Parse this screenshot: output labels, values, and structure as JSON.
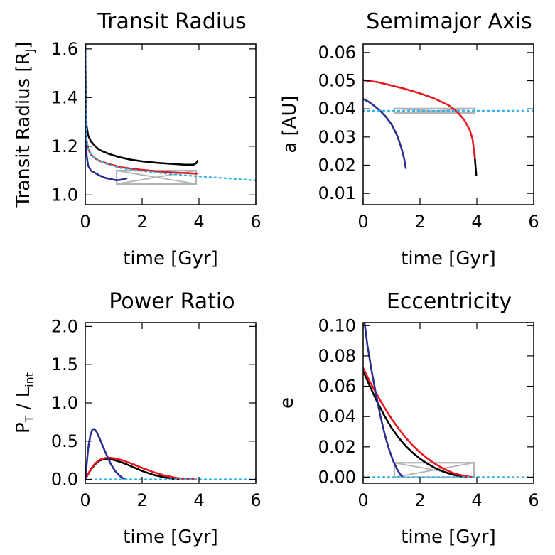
{
  "chart_data": [
    {
      "type": "line",
      "title": "Transit Radius",
      "xlabel": "time [Gyr]",
      "ylabel_main": "Transit Radius [R",
      "ylabel_sub": "J",
      "ylabel_end": "]",
      "xlim": [
        0,
        6
      ],
      "ylim": [
        0.96,
        1.62
      ],
      "xticks": [
        0,
        2,
        4,
        6
      ],
      "yticks": [
        1.0,
        1.2,
        1.4,
        1.6
      ],
      "ytick_labels": [
        "1.0",
        "1.2",
        "1.4",
        "1.6"
      ],
      "series": [
        {
          "name": "black",
          "color": "#000000",
          "style": "solid",
          "x": [
            0.0,
            0.02,
            0.05,
            0.1,
            0.2,
            0.35,
            0.5,
            0.8,
            1.2,
            1.6,
            2.0,
            2.5,
            3.0,
            3.5,
            3.8,
            3.9,
            3.95
          ],
          "y": [
            1.62,
            1.35,
            1.28,
            1.245,
            1.22,
            1.2,
            1.185,
            1.17,
            1.155,
            1.145,
            1.138,
            1.132,
            1.128,
            1.124,
            1.124,
            1.13,
            1.14
          ]
        },
        {
          "name": "red",
          "color": "#e8191e",
          "style": "solid",
          "x": [
            0.0,
            0.02,
            0.05,
            0.1,
            0.2,
            0.35,
            0.5,
            0.8,
            1.2,
            1.6,
            2.0,
            2.5,
            3.0,
            3.5,
            3.8,
            3.92
          ],
          "y": [
            1.62,
            1.28,
            1.22,
            1.19,
            1.165,
            1.15,
            1.14,
            1.128,
            1.115,
            1.108,
            1.103,
            1.097,
            1.093,
            1.09,
            1.088,
            1.088
          ]
        },
        {
          "name": "blue",
          "color": "#2a2f8f",
          "style": "solid",
          "x": [
            0.0,
            0.02,
            0.05,
            0.1,
            0.2,
            0.35,
            0.5,
            0.7,
            0.9,
            1.1,
            1.3,
            1.45
          ],
          "y": [
            1.62,
            1.25,
            1.16,
            1.12,
            1.1,
            1.09,
            1.08,
            1.07,
            1.065,
            1.06,
            1.063,
            1.068
          ]
        },
        {
          "name": "cyan",
          "color": "#35b5e5",
          "style": "dotted",
          "x": [
            0.0,
            0.02,
            0.05,
            0.1,
            0.2,
            0.35,
            0.5,
            0.8,
            1.2,
            1.6,
            2.0,
            2.5,
            3.0,
            3.5,
            4.0,
            4.5,
            5.0,
            5.5,
            6.0
          ],
          "y": [
            1.62,
            1.28,
            1.22,
            1.19,
            1.165,
            1.15,
            1.14,
            1.125,
            1.112,
            1.104,
            1.098,
            1.092,
            1.086,
            1.081,
            1.076,
            1.072,
            1.068,
            1.064,
            1.06
          ]
        }
      ],
      "constraint_box": {
        "x": [
          1.1,
          3.9
        ],
        "y": [
          1.045,
          1.1
        ],
        "color": "#b3b3b3"
      }
    },
    {
      "type": "line",
      "title": "Semimajor Axis",
      "xlabel": "time [Gyr]",
      "ylabel": "a [AU]",
      "xlim": [
        0,
        6
      ],
      "ylim": [
        0.006,
        0.063
      ],
      "xticks": [
        0,
        2,
        4,
        6
      ],
      "yticks": [
        0.01,
        0.02,
        0.03,
        0.04,
        0.05,
        0.06
      ],
      "ytick_labels": [
        "0.01",
        "0.02",
        "0.03",
        "0.04",
        "0.05",
        "0.06"
      ],
      "series": [
        {
          "name": "black",
          "color": "#000000",
          "style": "solid",
          "x": [
            3.92,
            3.95,
            3.98
          ],
          "y": [
            0.024,
            0.02,
            0.0165
          ]
        },
        {
          "name": "red",
          "color": "#e8191e",
          "style": "solid",
          "x": [
            0.0,
            0.5,
            1.0,
            1.5,
            2.0,
            2.5,
            3.0,
            3.3,
            3.55,
            3.75,
            3.85,
            3.93
          ],
          "y": [
            0.0502,
            0.0495,
            0.0483,
            0.047,
            0.0455,
            0.0437,
            0.0413,
            0.039,
            0.0362,
            0.0325,
            0.0292,
            0.0225
          ]
        },
        {
          "name": "blue",
          "color": "#2a2f8f",
          "style": "solid",
          "x": [
            0.0,
            0.2,
            0.4,
            0.6,
            0.8,
            1.0,
            1.2,
            1.35,
            1.45,
            1.5
          ],
          "y": [
            0.0435,
            0.0425,
            0.041,
            0.0393,
            0.0372,
            0.0345,
            0.0305,
            0.026,
            0.022,
            0.019
          ]
        },
        {
          "name": "cyan",
          "color": "#35b5e5",
          "style": "dotted",
          "x": [
            0.0,
            6.0
          ],
          "y": [
            0.0393,
            0.0393
          ]
        }
      ],
      "constraint_box": {
        "x": [
          1.1,
          3.9
        ],
        "y": [
          0.0385,
          0.0401
        ],
        "color": "#b3b3b3"
      }
    },
    {
      "type": "line",
      "title": "Power Ratio",
      "xlabel": "time [Gyr]",
      "ylabel_main": "P",
      "ylabel_sub": "T",
      "ylabel_mid": " / L",
      "ylabel_sub2": "int",
      "xlim": [
        0,
        6
      ],
      "ylim": [
        -0.05,
        2.05
      ],
      "xticks": [
        0,
        2,
        4,
        6
      ],
      "yticks": [
        0.0,
        0.5,
        1.0,
        1.5,
        2.0
      ],
      "ytick_labels": [
        "0.0",
        "0.5",
        "1.0",
        "1.5",
        "2.0"
      ],
      "series": [
        {
          "name": "black",
          "color": "#000000",
          "style": "solid",
          "x": [
            0.0,
            0.1,
            0.2,
            0.35,
            0.5,
            0.7,
            0.85,
            1.0,
            1.3,
            1.6,
            2.0,
            2.4,
            2.8,
            3.1,
            3.4
          ],
          "y": [
            0.0,
            0.07,
            0.13,
            0.2,
            0.245,
            0.27,
            0.268,
            0.255,
            0.22,
            0.175,
            0.11,
            0.06,
            0.025,
            0.008,
            0.0
          ]
        },
        {
          "name": "red",
          "color": "#e8191e",
          "style": "solid",
          "x": [
            0.0,
            0.1,
            0.2,
            0.35,
            0.5,
            0.7,
            0.85,
            1.0,
            1.3,
            1.6,
            2.0,
            2.4,
            2.8,
            3.2,
            3.6,
            3.9
          ],
          "y": [
            0.0,
            0.07,
            0.14,
            0.21,
            0.255,
            0.28,
            0.283,
            0.277,
            0.25,
            0.21,
            0.15,
            0.095,
            0.05,
            0.02,
            0.005,
            0.0
          ]
        },
        {
          "name": "blue",
          "color": "#2a2f8f",
          "style": "solid",
          "x": [
            0.0,
            0.05,
            0.1,
            0.18,
            0.25,
            0.32,
            0.4,
            0.5,
            0.6,
            0.75,
            0.9,
            1.05,
            1.2,
            1.35,
            1.45
          ],
          "y": [
            0.0,
            0.2,
            0.4,
            0.58,
            0.65,
            0.66,
            0.62,
            0.54,
            0.45,
            0.32,
            0.2,
            0.11,
            0.05,
            0.01,
            0.0
          ]
        },
        {
          "name": "cyan",
          "color": "#35b5e5",
          "style": "dotted",
          "x": [
            0.0,
            6.0
          ],
          "y": [
            0.0,
            0.0
          ]
        }
      ]
    },
    {
      "type": "line",
      "title": "Eccentricity",
      "xlabel": "time [Gyr]",
      "ylabel": "e",
      "xlim": [
        0,
        6
      ],
      "ylim": [
        -0.004,
        0.102
      ],
      "xticks": [
        0,
        2,
        4,
        6
      ],
      "yticks": [
        0.0,
        0.02,
        0.04,
        0.06,
        0.08,
        0.1
      ],
      "ytick_labels": [
        "0.00",
        "0.02",
        "0.04",
        "0.06",
        "0.08",
        "0.10"
      ],
      "series": [
        {
          "name": "black",
          "color": "#000000",
          "style": "solid",
          "x": [
            0.0,
            0.25,
            0.5,
            0.75,
            1.0,
            1.25,
            1.5,
            1.75,
            2.0,
            2.25,
            2.5,
            2.75,
            3.0,
            3.25,
            3.5,
            3.7
          ],
          "y": [
            0.07,
            0.0595,
            0.0495,
            0.0405,
            0.0325,
            0.026,
            0.0205,
            0.016,
            0.0122,
            0.009,
            0.0063,
            0.0042,
            0.0025,
            0.0012,
            0.0004,
            0.0
          ]
        },
        {
          "name": "red",
          "color": "#e8191e",
          "style": "solid",
          "x": [
            0.0,
            0.25,
            0.5,
            0.75,
            1.0,
            1.25,
            1.5,
            1.75,
            2.0,
            2.25,
            2.5,
            2.75,
            3.0,
            3.25,
            3.5,
            3.75,
            3.9
          ],
          "y": [
            0.072,
            0.0625,
            0.054,
            0.046,
            0.0385,
            0.032,
            0.026,
            0.0208,
            0.0163,
            0.0125,
            0.0092,
            0.0064,
            0.004,
            0.0022,
            0.001,
            0.0002,
            0.0
          ]
        },
        {
          "name": "blue",
          "color": "#2a2f8f",
          "style": "solid",
          "x": [
            0.05,
            0.15,
            0.3,
            0.45,
            0.6,
            0.75,
            0.9,
            1.05,
            1.2,
            1.3,
            1.4
          ],
          "y": [
            0.102,
            0.087,
            0.07,
            0.055,
            0.041,
            0.029,
            0.019,
            0.011,
            0.005,
            0.002,
            0.0
          ]
        },
        {
          "name": "cyan",
          "color": "#35b5e5",
          "style": "dotted",
          "x": [
            0.0,
            6.0
          ],
          "y": [
            0.0,
            0.0
          ]
        }
      ],
      "constraint_box": {
        "x": [
          1.1,
          3.9
        ],
        "y": [
          0.0,
          0.0095
        ],
        "color": "#b3b3b3"
      }
    }
  ]
}
